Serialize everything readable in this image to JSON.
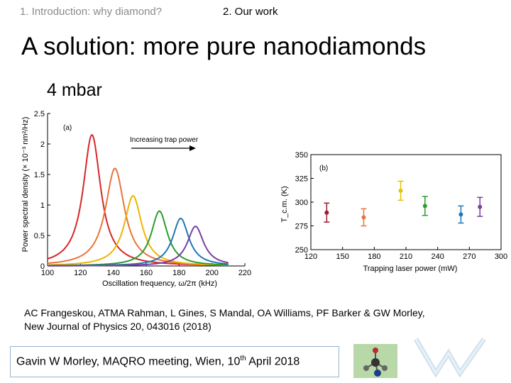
{
  "nav": {
    "item1": "1. Introduction: why diamond?",
    "item2": "2. Our work"
  },
  "slide": {
    "title": "A solution: more pure nanodiamonds",
    "subtitle": "4 mbar"
  },
  "citation": {
    "line1": "AC Frangeskou, ATMA Rahman, L Gines, S Mandal, OA Williams, PF Barker & GW Morley,",
    "line2": "New Journal of Physics 20, 043016 (2018)"
  },
  "footer": {
    "text_before": "Gavin W Morley, MAQRO meeting, Wien, 10",
    "sup": "th",
    "text_after": " April 2018"
  },
  "chart_data": [
    {
      "type": "line",
      "panel_label": "(a)",
      "annotation": "Increasing trap power",
      "xlabel": "Oscillation frequency, ω/2π (kHz)",
      "ylabel": "Power spectral density (× 10⁻³ nm²/Hz)",
      "xlim": [
        100,
        220
      ],
      "ylim": [
        0,
        2.5
      ],
      "x_ticks": [
        100,
        120,
        140,
        160,
        180,
        200,
        220
      ],
      "y_ticks": [
        0,
        0.5,
        1,
        1.5,
        2,
        2.5
      ],
      "series": [
        {
          "center": 127,
          "peak": 2.15,
          "width": 6.5,
          "color": "#d62728"
        },
        {
          "center": 141,
          "peak": 1.6,
          "width": 7.0,
          "color": "#e8743b"
        },
        {
          "center": 152,
          "peak": 1.15,
          "width": 6.5,
          "color": "#f0b400"
        },
        {
          "center": 168,
          "peak": 0.9,
          "width": 6.0,
          "color": "#2a9d2a"
        },
        {
          "center": 181,
          "peak": 0.78,
          "width": 6.0,
          "color": "#1f77b4"
        },
        {
          "center": 190,
          "peak": 0.65,
          "width": 6.0,
          "color": "#7b3fa0"
        }
      ],
      "grid": false
    },
    {
      "type": "scatter",
      "panel_label": "(b)",
      "xlabel": "Trapping laser power (mW)",
      "ylabel": "T_c.m. (K)",
      "xlim": [
        120,
        300
      ],
      "ylim": [
        250,
        350
      ],
      "x_ticks": [
        120,
        150,
        180,
        210,
        240,
        270,
        300
      ],
      "y_ticks": [
        250,
        275,
        300,
        325,
        350
      ],
      "points": [
        {
          "x": 135,
          "y": 289,
          "err": 10,
          "color": "#9b1c31"
        },
        {
          "x": 170,
          "y": 284,
          "err": 9,
          "color": "#e8743b"
        },
        {
          "x": 205,
          "y": 312,
          "err": 10,
          "color": "#e6c200"
        },
        {
          "x": 228,
          "y": 296,
          "err": 10,
          "color": "#2a9d2a"
        },
        {
          "x": 262,
          "y": 287,
          "err": 9,
          "color": "#1f77b4"
        },
        {
          "x": 280,
          "y": 295,
          "err": 10,
          "color": "#7b3fa0"
        }
      ],
      "grid": false
    }
  ]
}
